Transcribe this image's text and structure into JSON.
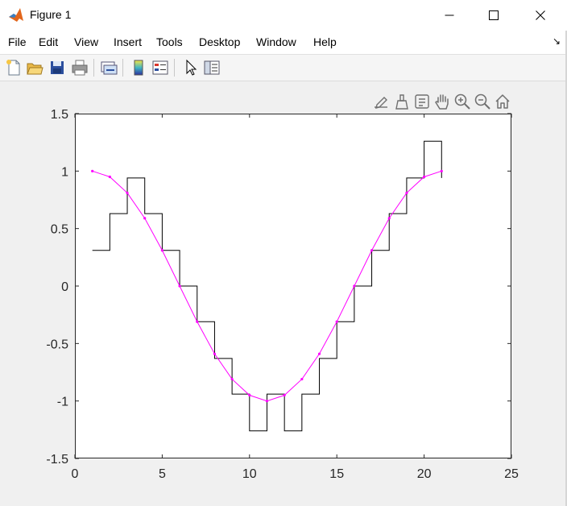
{
  "window": {
    "title": "Figure 1",
    "controls": {
      "minimize": "—",
      "maximize": "☐",
      "close": "✕"
    }
  },
  "menu": {
    "items": [
      "File",
      "Edit",
      "View",
      "Insert",
      "Tools",
      "Desktop",
      "Window",
      "Help"
    ],
    "overflow_arrow": "↘"
  },
  "toolbar": {
    "buttons": [
      "new-figure-icon",
      "open-file-icon",
      "save-icon",
      "print-icon",
      "link-plot-icon",
      "colorbar-icon",
      "legend-icon",
      "pointer-icon",
      "property-inspector-icon"
    ]
  },
  "axes_toolbar": {
    "buttons": [
      "edit-plot-icon",
      "brush-icon",
      "data-tips-icon",
      "pan-icon",
      "zoom-in-icon",
      "zoom-out-icon",
      "home-icon"
    ]
  },
  "chart_data": {
    "type": "line",
    "title": "",
    "xlabel": "",
    "ylabel": "",
    "xlim": [
      0,
      25
    ],
    "ylim": [
      -1.5,
      1.5
    ],
    "xticks": [
      0,
      5,
      10,
      15,
      20,
      25
    ],
    "yticks": [
      1.5,
      1,
      0.5,
      0,
      -0.5,
      -1,
      -1.5
    ],
    "xtick_labels": [
      "0",
      "5",
      "10",
      "15",
      "20",
      "25"
    ],
    "ytick_labels": [
      "1.5",
      "1",
      "0.5",
      "0",
      "-0.5",
      "-1",
      "-1.5"
    ],
    "grid": false,
    "legend": "none",
    "series": [
      {
        "style": "stairs",
        "color": "#000000",
        "x": [
          1,
          2,
          3,
          4,
          5,
          6,
          7,
          8,
          9,
          10,
          11,
          12,
          13,
          14,
          15,
          16,
          17,
          18,
          19,
          20,
          21
        ],
        "values": [
          0.31,
          0.63,
          0.94,
          0.63,
          0.31,
          0,
          -0.31,
          -0.63,
          -0.94,
          -1.26,
          -0.94,
          -1.26,
          -0.94,
          -0.63,
          -0.31,
          0,
          0.31,
          0.63,
          0.94,
          1.26,
          0.94
        ]
      },
      {
        "style": "line-with-dots",
        "color": "#ff00ff",
        "x": [
          1,
          2,
          3,
          4,
          5,
          6,
          7,
          8,
          9,
          10,
          11,
          12,
          13,
          14,
          15,
          16,
          17,
          18,
          19,
          20,
          21
        ],
        "values": [
          1,
          0.95,
          0.81,
          0.59,
          0.31,
          0,
          -0.31,
          -0.59,
          -0.81,
          -0.95,
          -1,
          -0.95,
          -0.81,
          -0.59,
          -0.31,
          0,
          0.31,
          0.59,
          0.81,
          0.95,
          1
        ]
      }
    ]
  }
}
